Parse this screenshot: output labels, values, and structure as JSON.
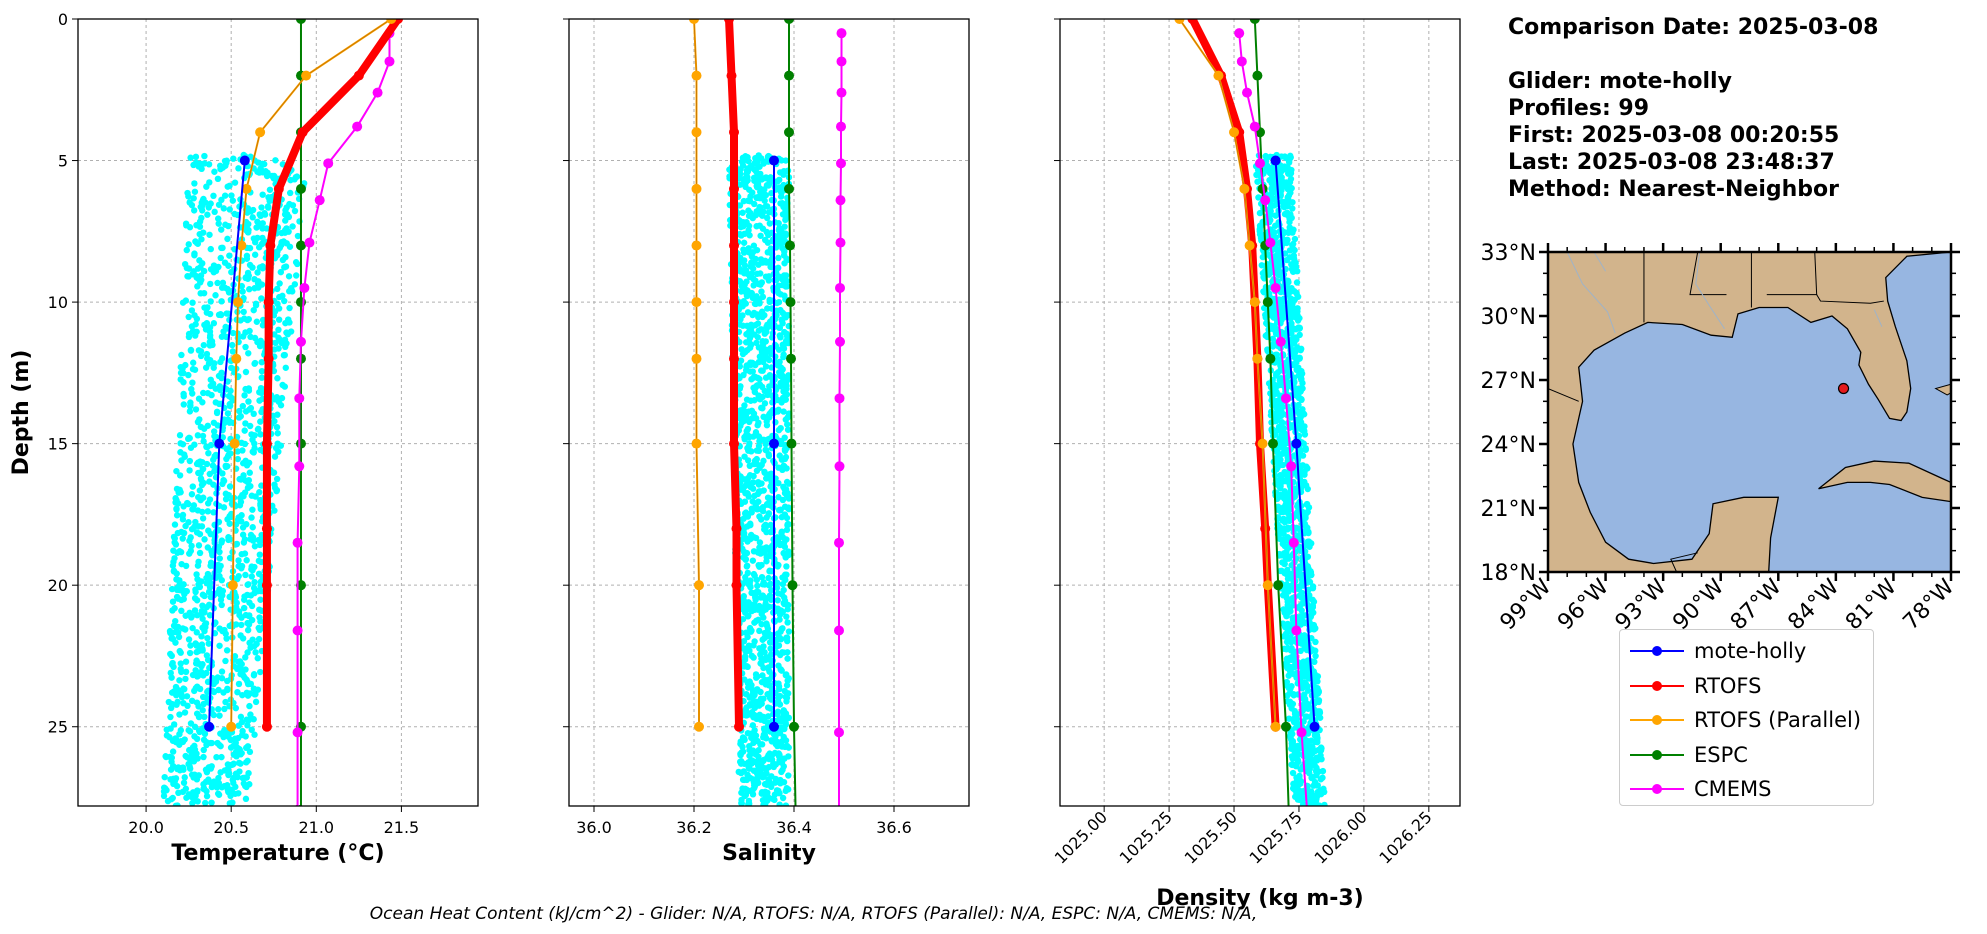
{
  "info": {
    "comparison_date": "Comparison Date: 2025-03-08",
    "glider": "Glider: mote-holly",
    "profiles": "Profiles: 99",
    "first": "First: 2025-03-08 00:20:55",
    "last": "Last: 2025-03-08 23:48:37",
    "method": "Method: Nearest-Neighbor"
  },
  "footer": "Ocean Heat Content (kJ/cm^2) - Glider: N/A,  RTOFS: N/A,  RTOFS (Parallel): N/A,  ESPC: N/A,  CMEMS: N/A,",
  "colors": {
    "mote-holly": "#0000ff",
    "RTOFS": "#ff0000",
    "RTOFS (Parallel)": "#ffa500",
    "ESPC": "#008000",
    "CMEMS": "#ff00ff",
    "glider_scatter": "#00ffff",
    "ocean": "#97b6e1",
    "land": "#d2b48c"
  },
  "legend": [
    {
      "name": "mote-holly",
      "color": "#0000ff"
    },
    {
      "name": "RTOFS",
      "color": "#ff0000"
    },
    {
      "name": "RTOFS (Parallel)",
      "color": "#ffa500"
    },
    {
      "name": "ESPC",
      "color": "#008000"
    },
    {
      "name": "CMEMS",
      "color": "#ff00ff"
    }
  ],
  "map": {
    "lat_ticks": [
      "33°N",
      "30°N",
      "27°N",
      "24°N",
      "21°N",
      "18°N"
    ],
    "lon_ticks": [
      "99°W",
      "96°W",
      "93°W",
      "90°W",
      "87°W",
      "84°W",
      "81°W",
      "78°W"
    ],
    "extent": {
      "lon_min": -99,
      "lon_max": -78,
      "lat_min": 18,
      "lat_max": 33
    },
    "glider_position": {
      "lon": -83.6,
      "lat": 26.6
    }
  },
  "chart_data": [
    {
      "type": "line",
      "xlabel": "Temperature (°C)",
      "ylabel": "Depth (m)",
      "xlim": [
        19.6,
        21.95
      ],
      "ylim": [
        27.8,
        0
      ],
      "x_ticks": [
        "20.0",
        "20.5",
        "21.0",
        "21.5"
      ],
      "x_tick_values": [
        20.0,
        20.5,
        21.0,
        21.5
      ],
      "y_ticks": [
        "0",
        "5",
        "10",
        "15",
        "20",
        "25"
      ],
      "y_tick_values": [
        0,
        5,
        10,
        15,
        20,
        25
      ],
      "scatter_band": {
        "series": "mote-holly",
        "depth_range": [
          4.8,
          27.8
        ],
        "x_min_top": 20.25,
        "x_min_bottom": 20.1,
        "x_max_top": 20.95,
        "x_max_bottom": 20.6
      },
      "series": [
        {
          "name": "mote-holly",
          "x": [
            20.58,
            20.43,
            20.37
          ],
          "y": [
            5,
            15,
            25
          ]
        },
        {
          "name": "RTOFS",
          "x": [
            21.48,
            21.25,
            20.92,
            20.78,
            20.73,
            20.72,
            20.72,
            20.71,
            20.71,
            20.71,
            20.71
          ],
          "y": [
            0,
            2,
            4,
            6,
            8,
            10,
            12,
            15,
            18,
            20,
            25
          ]
        },
        {
          "name": "RTOFS (Parallel)",
          "x": [
            21.44,
            20.94,
            20.67,
            20.59,
            20.56,
            20.54,
            20.53,
            20.52,
            20.51,
            20.5
          ],
          "y": [
            0,
            2,
            4,
            6,
            8,
            10,
            12,
            15,
            20,
            25
          ]
        },
        {
          "name": "ESPC",
          "x": [
            20.91,
            20.91,
            20.91,
            20.91,
            20.91,
            20.91,
            20.91,
            20.91,
            20.91,
            20.91,
            20.91,
            20.9
          ],
          "y": [
            0,
            2,
            4,
            6,
            8,
            10,
            12,
            15,
            20,
            25,
            27.8,
            27.8
          ]
        },
        {
          "name": "CMEMS",
          "x": [
            21.43,
            21.43,
            21.36,
            21.24,
            21.07,
            21.02,
            20.96,
            20.93,
            20.91,
            20.9,
            20.9,
            20.89,
            20.89,
            20.89,
            20.89,
            20.88,
            20.88
          ],
          "y": [
            0.5,
            1.5,
            2.6,
            3.8,
            5.1,
            6.4,
            7.9,
            9.5,
            11.4,
            13.4,
            15.8,
            18.5,
            21.6,
            25.2,
            27.8,
            27.8,
            27.8
          ]
        }
      ]
    },
    {
      "type": "line",
      "xlabel": "Salinity",
      "xlim": [
        35.95,
        36.75
      ],
      "ylim": [
        27.8,
        0
      ],
      "x_ticks": [
        "36.0",
        "36.2",
        "36.4",
        "36.6"
      ],
      "x_tick_values": [
        36.0,
        36.2,
        36.4,
        36.6
      ],
      "scatter_band": {
        "series": "mote-holly",
        "depth_range": [
          4.8,
          27.8
        ],
        "x_min_top": 36.27,
        "x_min_bottom": 36.29,
        "x_max_top": 36.39,
        "x_max_bottom": 36.39
      },
      "series": [
        {
          "name": "mote-holly",
          "x": [
            36.36,
            36.36,
            36.36
          ],
          "y": [
            5,
            15,
            25
          ]
        },
        {
          "name": "RTOFS",
          "x": [
            36.27,
            36.275,
            36.28,
            36.28,
            36.28,
            36.28,
            36.28,
            36.28,
            36.285,
            36.285,
            36.29
          ],
          "y": [
            0,
            2,
            4,
            6,
            8,
            10,
            12,
            15,
            18,
            20,
            25
          ]
        },
        {
          "name": "RTOFS (Parallel)",
          "x": [
            36.2,
            36.205,
            36.205,
            36.205,
            36.205,
            36.205,
            36.205,
            36.205,
            36.21,
            36.21
          ],
          "y": [
            0,
            2,
            4,
            6,
            8,
            10,
            12,
            15,
            20,
            25
          ]
        },
        {
          "name": "ESPC",
          "x": [
            36.39,
            36.39,
            36.39,
            36.39,
            36.392,
            36.393,
            36.394,
            36.395,
            36.397,
            36.4,
            36.403
          ],
          "y": [
            0,
            2,
            4,
            6,
            8,
            10,
            12,
            15,
            20,
            25,
            27.8
          ]
        },
        {
          "name": "CMEMS",
          "x": [
            36.495,
            36.495,
            36.495,
            36.494,
            36.494,
            36.493,
            36.493,
            36.492,
            36.492,
            36.491,
            36.491,
            36.49,
            36.49,
            36.49,
            36.49
          ],
          "y": [
            0.5,
            1.5,
            2.6,
            3.8,
            5.1,
            6.4,
            7.9,
            9.5,
            11.4,
            13.4,
            15.8,
            18.5,
            21.6,
            25.2,
            27.8
          ]
        }
      ]
    },
    {
      "type": "line",
      "xlabel": "Density (kg m-3)",
      "xlim": [
        1024.83,
        1026.37
      ],
      "ylim": [
        27.8,
        0
      ],
      "x_ticks": [
        "1025.00",
        "1025.25",
        "1025.50",
        "1025.75",
        "1026.00",
        "1026.25"
      ],
      "x_tick_values": [
        1025.0,
        1025.25,
        1025.5,
        1025.75,
        1026.0,
        1026.25
      ],
      "scatter_band": {
        "series": "mote-holly",
        "depth_range": [
          4.8,
          27.8
        ],
        "x_min_top": 1025.58,
        "x_min_bottom": 1025.73,
        "x_max_top": 1025.72,
        "x_max_bottom": 1025.85
      },
      "series": [
        {
          "name": "mote-holly",
          "x": [
            1025.66,
            1025.74,
            1025.81
          ],
          "y": [
            5,
            15,
            25
          ]
        },
        {
          "name": "RTOFS",
          "x": [
            1025.34,
            1025.45,
            1025.52,
            1025.55,
            1025.57,
            1025.58,
            1025.59,
            1025.6,
            1025.62,
            1025.63,
            1025.66
          ],
          "y": [
            0,
            2,
            4,
            6,
            8,
            10,
            12,
            15,
            18,
            20,
            25
          ]
        },
        {
          "name": "RTOFS (Parallel)",
          "x": [
            1025.29,
            1025.44,
            1025.5,
            1025.54,
            1025.56,
            1025.58,
            1025.59,
            1025.61,
            1025.63,
            1025.66
          ],
          "y": [
            0,
            2,
            4,
            6,
            8,
            10,
            12,
            15,
            20,
            25
          ]
        },
        {
          "name": "ESPC",
          "x": [
            1025.58,
            1025.59,
            1025.6,
            1025.61,
            1025.62,
            1025.63,
            1025.64,
            1025.65,
            1025.67,
            1025.7,
            1025.71
          ],
          "y": [
            0,
            2,
            4,
            6,
            8,
            10,
            12,
            15,
            20,
            25,
            27.8
          ]
        },
        {
          "name": "CMEMS",
          "x": [
            1025.52,
            1025.53,
            1025.55,
            1025.58,
            1025.6,
            1025.62,
            1025.64,
            1025.66,
            1025.68,
            1025.7,
            1025.72,
            1025.73,
            1025.74,
            1025.76,
            1025.78
          ],
          "y": [
            0.5,
            1.5,
            2.6,
            3.8,
            5.1,
            6.4,
            7.9,
            9.5,
            11.4,
            13.4,
            15.8,
            18.5,
            21.6,
            25.2,
            27.8
          ]
        }
      ]
    }
  ]
}
